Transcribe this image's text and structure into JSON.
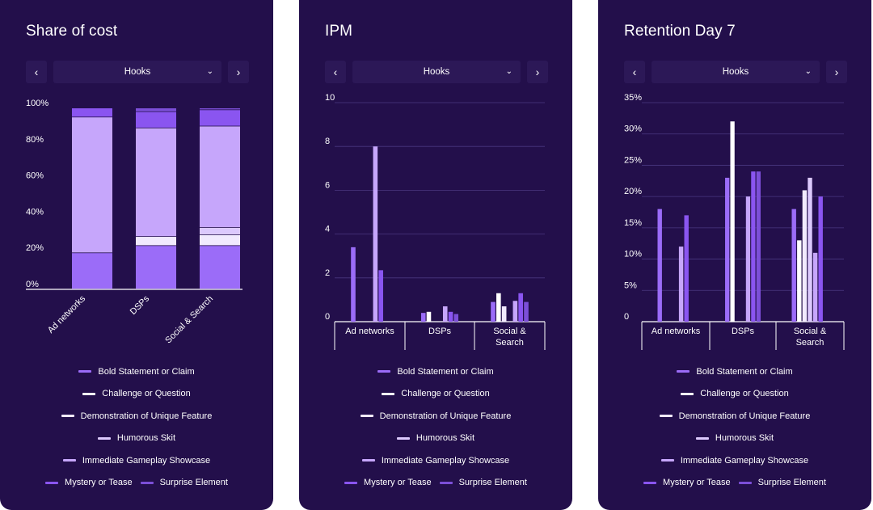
{
  "series_colors": [
    "#9b6cf8",
    "#ffffff",
    "#f1eafe",
    "#dcc9fd",
    "#c6a6fb",
    "#8a55f0",
    "#7c4fd8"
  ],
  "legend": [
    "Bold Statement or Claim",
    "Challenge or Question",
    "Demonstration of Unique Feature",
    "Humorous Skit",
    "Immediate Gameplay Showcase",
    "Mystery or Tease",
    "Surprise Element"
  ],
  "cards": [
    {
      "title": "Share of cost",
      "selector": {
        "prev": "‹",
        "value": "Hooks",
        "next": "›"
      }
    },
    {
      "title": "IPM",
      "selector": {
        "prev": "‹",
        "value": "Hooks",
        "next": "›"
      }
    },
    {
      "title": "Retention Day 7",
      "selector": {
        "prev": "‹",
        "value": "Hooks",
        "next": "›"
      }
    }
  ],
  "chart_data": [
    {
      "type": "bar",
      "stacked": true,
      "title": "Share of cost",
      "categories": [
        "Ad networks",
        "DSPs",
        "Social & Search"
      ],
      "ylim": [
        0,
        100
      ],
      "yticks": [
        0,
        20,
        40,
        60,
        80,
        100
      ],
      "ytick_labels": [
        "0%",
        "20%",
        "40%",
        "60%",
        "80%",
        "100%"
      ],
      "series": [
        {
          "name": "Bold Statement or Claim",
          "values": [
            20,
            24,
            24
          ]
        },
        {
          "name": "Challenge or Question",
          "values": [
            0,
            0,
            0
          ]
        },
        {
          "name": "Demonstration of Unique Feature",
          "values": [
            0,
            5,
            6
          ]
        },
        {
          "name": "Humorous Skit",
          "values": [
            0,
            0,
            4
          ]
        },
        {
          "name": "Immediate Gameplay Showcase",
          "values": [
            75,
            60,
            56
          ]
        },
        {
          "name": "Mystery or Tease",
          "values": [
            5,
            9,
            9
          ]
        },
        {
          "name": "Surprise Element",
          "values": [
            0,
            2,
            1
          ]
        }
      ]
    },
    {
      "type": "bar",
      "title": "IPM",
      "categories": [
        "Ad networks",
        "DSPs",
        "Social &\nSearch"
      ],
      "ylim": [
        0,
        10
      ],
      "yticks": [
        0,
        2,
        4,
        6,
        8,
        10
      ],
      "ytick_labels": [
        "0",
        "2",
        "4",
        "6",
        "8",
        "10"
      ],
      "series": [
        {
          "name": "Bold Statement or Claim",
          "values": [
            3.4,
            0.4,
            0.9
          ]
        },
        {
          "name": "Challenge or Question",
          "values": [
            0,
            0.45,
            1.3
          ]
        },
        {
          "name": "Demonstration of Unique Feature",
          "values": [
            0,
            0,
            0.7
          ]
        },
        {
          "name": "Humorous Skit",
          "values": [
            0,
            0,
            0
          ]
        },
        {
          "name": "Immediate Gameplay Showcase",
          "values": [
            8.0,
            0.7,
            0.95
          ]
        },
        {
          "name": "Mystery or Tease",
          "values": [
            2.35,
            0.45,
            1.3
          ]
        },
        {
          "name": "Surprise Element",
          "values": [
            0,
            0.35,
            0.9
          ]
        }
      ]
    },
    {
      "type": "bar",
      "title": "Retention Day 7",
      "categories": [
        "Ad networks",
        "DSPs",
        "Social &\nSearch"
      ],
      "ylim": [
        0,
        35
      ],
      "yticks": [
        0,
        5,
        10,
        15,
        20,
        25,
        30,
        35
      ],
      "ytick_labels": [
        "0",
        "5%",
        "10%",
        "15%",
        "20%",
        "25%",
        "30%",
        "35%"
      ],
      "series": [
        {
          "name": "Bold Statement or Claim",
          "values": [
            18,
            23,
            18
          ]
        },
        {
          "name": "Challenge or Question",
          "values": [
            0,
            32,
            13
          ]
        },
        {
          "name": "Demonstration of Unique Feature",
          "values": [
            0,
            0,
            21
          ]
        },
        {
          "name": "Humorous Skit",
          "values": [
            0,
            0,
            23
          ]
        },
        {
          "name": "Immediate Gameplay Showcase",
          "values": [
            12,
            20,
            11
          ]
        },
        {
          "name": "Mystery or Tease",
          "values": [
            17,
            24,
            20
          ]
        },
        {
          "name": "Surprise Element",
          "values": [
            0,
            24,
            0
          ]
        }
      ]
    }
  ]
}
